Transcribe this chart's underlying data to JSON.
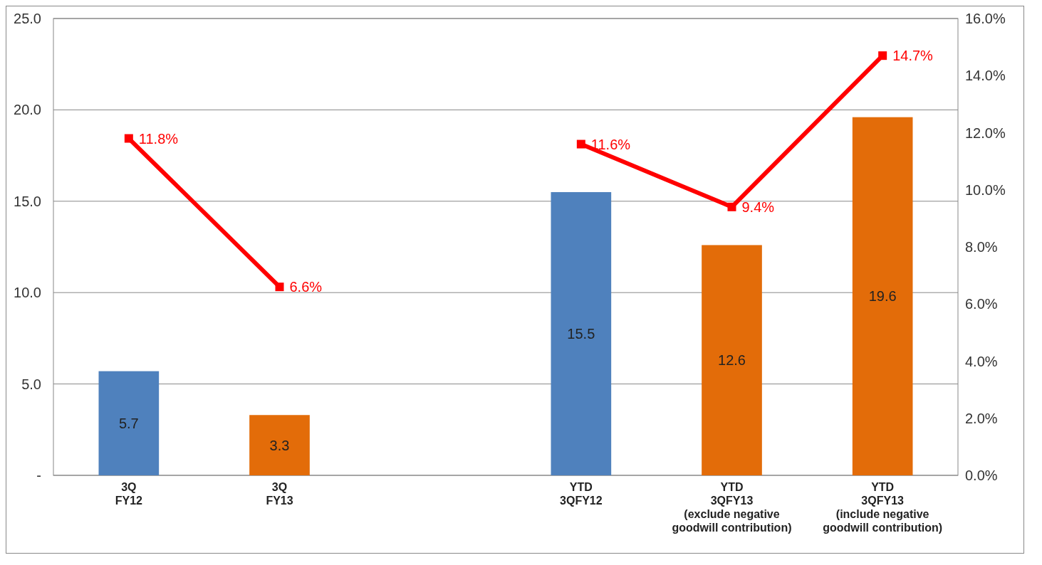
{
  "chart_data": {
    "type": "bar",
    "categories": [
      "3Q\nFY12",
      "3Q\nFY13",
      null,
      "YTD\n3QFY12",
      "YTD\n3QFY13\n(exclude negative\ngoodwill contribution)",
      "YTD\n3QFY13\n(include negative\ngoodwill contribution)"
    ],
    "series": [
      {
        "colors": [
          "#4f81bd",
          "#e36c09",
          null,
          "#4f81bd",
          "#e36c09",
          "#e36c09"
        ],
        "values": [
          5.7,
          3.3,
          null,
          15.5,
          12.6,
          19.6
        ],
        "value_labels": [
          "5.7",
          "3.3",
          null,
          "15.5",
          "12.6",
          "19.6"
        ]
      },
      {
        "type": "line",
        "axis": "y2",
        "color": "#ff0000",
        "values": [
          11.8,
          6.6,
          null,
          11.6,
          9.4,
          14.7
        ],
        "value_labels": [
          "11.8%",
          "6.6%",
          null,
          "11.6%",
          "9.4%",
          "14.7%"
        ]
      }
    ],
    "ylim": [
      0,
      25
    ],
    "yticks": [
      {
        "value": 0,
        "label": "-"
      },
      {
        "value": 5,
        "label": "5.0"
      },
      {
        "value": 10,
        "label": "10.0"
      },
      {
        "value": 15,
        "label": "15.0"
      },
      {
        "value": 20,
        "label": "20.0"
      },
      {
        "value": 25,
        "label": "25.0"
      }
    ],
    "y2lim": [
      0,
      16
    ],
    "y2ticks": [
      {
        "value": 0,
        "label": "0.0%"
      },
      {
        "value": 2,
        "label": "2.0%"
      },
      {
        "value": 4,
        "label": "4.0%"
      },
      {
        "value": 6,
        "label": "6.0%"
      },
      {
        "value": 8,
        "label": "8.0%"
      },
      {
        "value": 10,
        "label": "10.0%"
      },
      {
        "value": 12,
        "label": "12.0%"
      },
      {
        "value": 14,
        "label": "14.0%"
      },
      {
        "value": 16,
        "label": "16.0%"
      }
    ],
    "grid": "y",
    "marker": "square",
    "line_style": "solid"
  }
}
